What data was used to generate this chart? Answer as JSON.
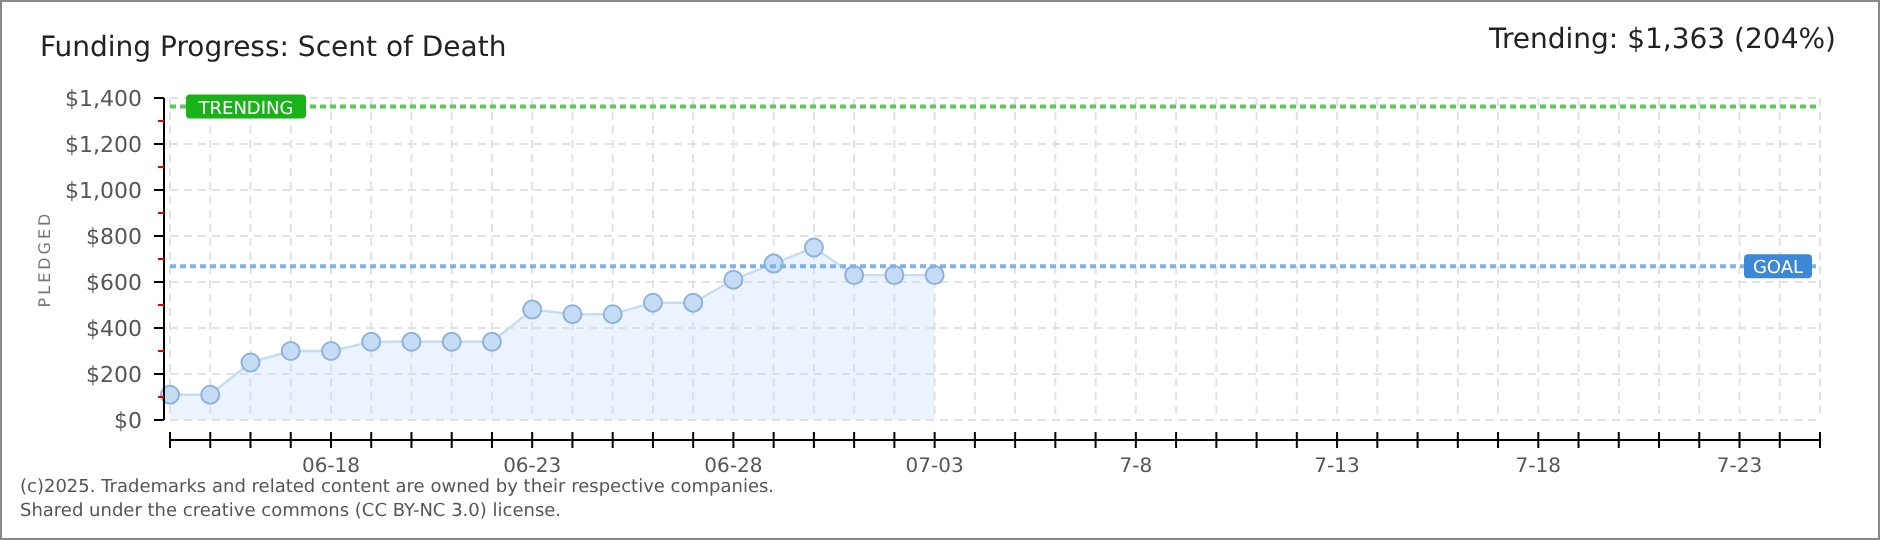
{
  "chart_data": {
    "type": "area",
    "title": "Funding Progress: Scent of Death",
    "subtitle": "Trending: $1,363 (204%)",
    "ylabel": "PLEDGED",
    "x": [
      "--06-14",
      "--06-15",
      "--06-16",
      "--06-17",
      "--06-18",
      "--06-19",
      "--06-20",
      "--06-21",
      "--06-22",
      "--06-23",
      "--06-24",
      "--06-25",
      "--06-26",
      "--06-27",
      "--06-28",
      "--06-29",
      "--06-30",
      "--07-01",
      "--07-02",
      "--07-03"
    ],
    "series": [
      {
        "color": "#c5dcf5",
        "values": [
          110,
          110,
          250,
          300,
          300,
          340,
          340,
          340,
          340,
          480,
          460,
          460,
          510,
          510,
          610,
          680,
          750,
          630,
          630,
          630
        ]
      }
    ],
    "marker": "circle",
    "grid": true,
    "xlim": [
      "--06-14",
      "--07-25"
    ],
    "xticks": [
      {
        "value": "--06-14",
        "label": null
      },
      {
        "value": "--06-15",
        "label": null
      },
      {
        "value": "--06-16",
        "label": null
      },
      {
        "value": "--06-17",
        "label": null
      },
      {
        "value": "--06-18",
        "label": "06-18"
      },
      {
        "value": "--06-19",
        "label": null
      },
      {
        "value": "--06-20",
        "label": null
      },
      {
        "value": "--06-21",
        "label": null
      },
      {
        "value": "--06-22",
        "label": null
      },
      {
        "value": "--06-23",
        "label": "06-23"
      },
      {
        "value": "--06-24",
        "label": null
      },
      {
        "value": "--06-25",
        "label": null
      },
      {
        "value": "--06-26",
        "label": null
      },
      {
        "value": "--06-27",
        "label": null
      },
      {
        "value": "--06-28",
        "label": "06-28"
      },
      {
        "value": "--06-29",
        "label": null
      },
      {
        "value": "--06-30",
        "label": null
      },
      {
        "value": "--07-01",
        "label": null
      },
      {
        "value": "--07-02",
        "label": null
      },
      {
        "value": "--07-03",
        "label": "07-03"
      },
      {
        "value": "--07-04",
        "label": null
      },
      {
        "value": "--07-05",
        "label": null
      },
      {
        "value": "--07-06",
        "label": null
      },
      {
        "value": "--07-07",
        "label": null
      },
      {
        "value": "--07-08",
        "label": "7-8"
      },
      {
        "value": "--07-09",
        "label": null
      },
      {
        "value": "--07-10",
        "label": null
      },
      {
        "value": "--07-11",
        "label": null
      },
      {
        "value": "--07-12",
        "label": null
      },
      {
        "value": "--07-13",
        "label": "7-13"
      },
      {
        "value": "--07-14",
        "label": null
      },
      {
        "value": "--07-15",
        "label": null
      },
      {
        "value": "--07-16",
        "label": null
      },
      {
        "value": "--07-17",
        "label": null
      },
      {
        "value": "--07-18",
        "label": "7-18"
      },
      {
        "value": "--07-19",
        "label": null
      },
      {
        "value": "--07-20",
        "label": null
      },
      {
        "value": "--07-21",
        "label": null
      },
      {
        "value": "--07-22",
        "label": null
      },
      {
        "value": "--07-23",
        "label": "7-23"
      },
      {
        "value": "--07-24",
        "label": null
      },
      {
        "value": "--07-25",
        "label": null
      }
    ],
    "ylim": [
      0,
      1400
    ],
    "yticks": [
      {
        "value": 0,
        "label": "$0"
      },
      {
        "value": 100,
        "label": null
      },
      {
        "value": 200,
        "label": "$200"
      },
      {
        "value": 300,
        "label": null
      },
      {
        "value": 400,
        "label": "$400"
      },
      {
        "value": 500,
        "label": null
      },
      {
        "value": 600,
        "label": "$600"
      },
      {
        "value": 700,
        "label": null
      },
      {
        "value": 800,
        "label": "$800"
      },
      {
        "value": 900,
        "label": null
      },
      {
        "value": 1000,
        "label": "$1,000"
      },
      {
        "value": 1100,
        "label": null
      },
      {
        "value": 1200,
        "label": "$1,200"
      },
      {
        "value": 1300,
        "label": null
      },
      {
        "value": 1400,
        "label": "$1,400"
      }
    ],
    "ref_lines": [
      {
        "axis": "y",
        "value": 1363,
        "label": "TRENDING",
        "color": "#5cc85c",
        "line_style": "dotted"
      },
      {
        "axis": "y",
        "value": 668,
        "label": "GOAL",
        "color": "#7fb2ea",
        "line_style": "dotted"
      }
    ],
    "annotations": [
      "(c)2025. Trademarks and related content are owned by their respective companies.",
      "Shared under the creative commons (CC BY-NC 3.0) license."
    ]
  }
}
